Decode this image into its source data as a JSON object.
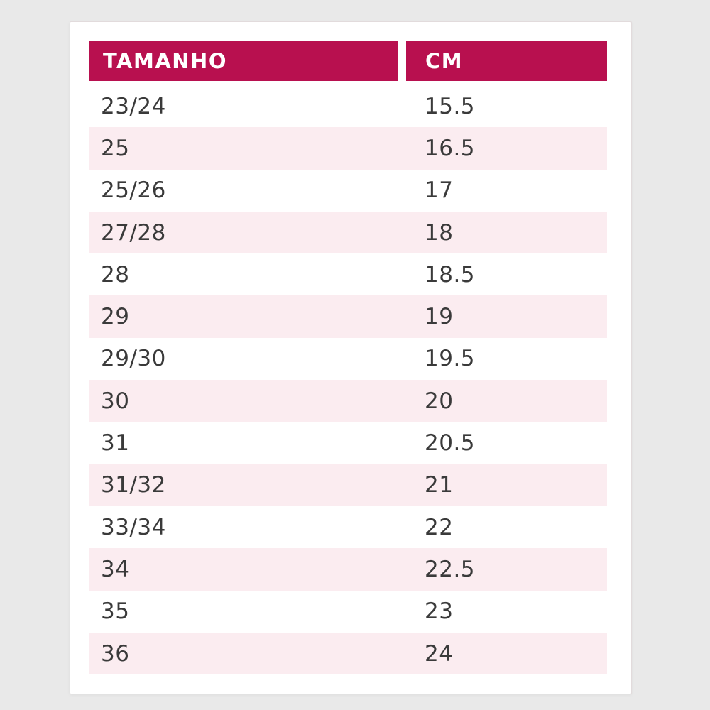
{
  "page": {
    "background_color": "#e9e9e9"
  },
  "card": {
    "background_color": "#ffffff",
    "border_color": "#e2dbdc"
  },
  "table": {
    "header": {
      "columns": [
        "TAMANHO",
        "CM"
      ],
      "background_color": "#b8104f",
      "text_color": "#ffffff"
    },
    "stripe_color": "#fbecf0",
    "text_color": "#3a3a3a",
    "rows": [
      {
        "tamanho": "23/24",
        "cm": "15.5"
      },
      {
        "tamanho": "25",
        "cm": "16.5"
      },
      {
        "tamanho": "25/26",
        "cm": "17"
      },
      {
        "tamanho": "27/28",
        "cm": "18"
      },
      {
        "tamanho": "28",
        "cm": "18.5"
      },
      {
        "tamanho": "29",
        "cm": "19"
      },
      {
        "tamanho": "29/30",
        "cm": "19.5"
      },
      {
        "tamanho": "30",
        "cm": "20"
      },
      {
        "tamanho": "31",
        "cm": "20.5"
      },
      {
        "tamanho": "31/32",
        "cm": "21"
      },
      {
        "tamanho": "33/34",
        "cm": "22"
      },
      {
        "tamanho": "34",
        "cm": "22.5"
      },
      {
        "tamanho": "35",
        "cm": "23"
      },
      {
        "tamanho": "36",
        "cm": "24"
      }
    ]
  },
  "chart_data": {
    "type": "table",
    "title": "",
    "columns": [
      "TAMANHO",
      "CM"
    ],
    "rows": [
      [
        "23/24",
        15.5
      ],
      [
        "25",
        16.5
      ],
      [
        "25/26",
        17
      ],
      [
        "27/28",
        18
      ],
      [
        "28",
        18.5
      ],
      [
        "29",
        19
      ],
      [
        "29/30",
        19.5
      ],
      [
        "30",
        20
      ],
      [
        "31",
        20.5
      ],
      [
        "31/32",
        21
      ],
      [
        "33/34",
        22
      ],
      [
        "34",
        22.5
      ],
      [
        "35",
        23
      ],
      [
        "36",
        24
      ]
    ],
    "layout_hints": {
      "header_background": "#b8104f",
      "zebra_striping": "even rows tinted #fbecf0",
      "column_alignment": [
        "left",
        "left"
      ]
    }
  }
}
